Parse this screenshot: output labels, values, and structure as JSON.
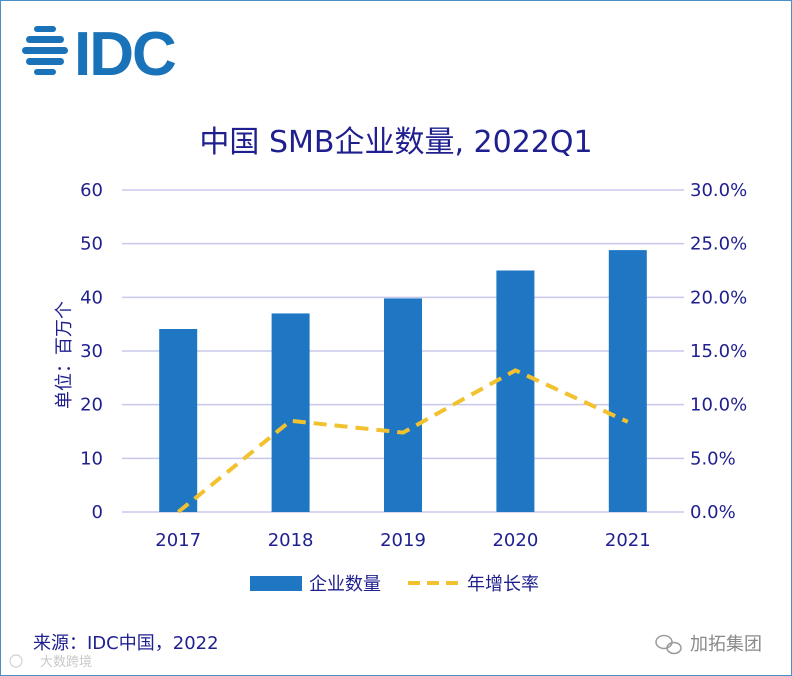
{
  "logo": {
    "text": "IDC"
  },
  "chart_data": {
    "type": "bar",
    "title": "中国 SMB企业数量, 2022Q1",
    "ylabel": "单位：百万个",
    "xlabel": "",
    "categories": [
      "2017",
      "2018",
      "2019",
      "2020",
      "2021"
    ],
    "ylim": [
      0,
      60
    ],
    "yticks": [
      0,
      10,
      20,
      30,
      40,
      50,
      60
    ],
    "y2lim": [
      0,
      30
    ],
    "y2ticks": [
      "0.0%",
      "5.0%",
      "10.0%",
      "15.0%",
      "20.0%",
      "25.0%",
      "30.0%"
    ],
    "grid": true,
    "legend_position": "bottom",
    "series": [
      {
        "name": "企业数量",
        "type": "bar",
        "axis": "left",
        "values": [
          34.1,
          37.0,
          39.8,
          45.0,
          48.8
        ],
        "color": "#1f77c4"
      },
      {
        "name": "年增长率",
        "type": "line",
        "axis": "right",
        "style": "dashed",
        "values": [
          0.0,
          8.5,
          7.4,
          13.2,
          8.4
        ],
        "color": "#f2c12e"
      }
    ]
  },
  "footer": {
    "source": "来源：IDC中国，2022",
    "wechat_brand": "加拓集团",
    "watermark": "大数跨境"
  },
  "colors": {
    "grid": "#c8c8ec",
    "text": "#1f1f8f",
    "logo": "#1a73b8",
    "frame": "#4a90c8"
  }
}
